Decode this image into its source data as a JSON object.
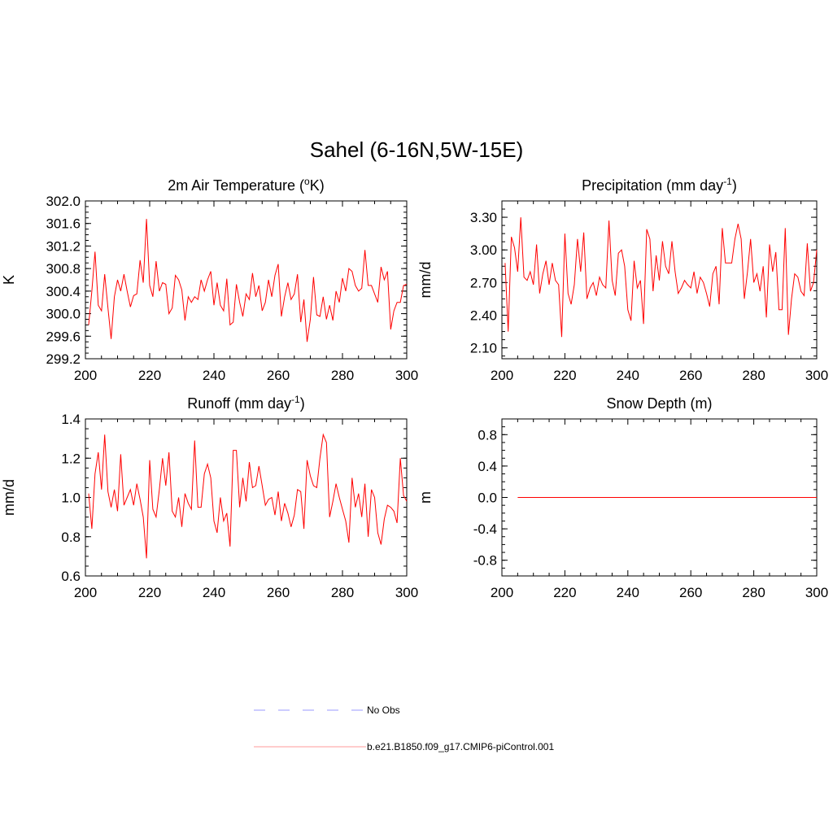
{
  "suptitle": "Sahel (6-16N,5W-15E)",
  "colors": {
    "model": "#ff0000",
    "obs": "#9999ff",
    "axis": "#000000"
  },
  "legend": {
    "obs_label": "No Obs",
    "model_label": "b.e21.B1850.f09_g17.CMIP6-piControl.001"
  },
  "chart_data": [
    {
      "type": "line",
      "title": "2m Air Temperature (",
      "title_parts": [
        "2m Air Temperature (",
        "o",
        "K)"
      ],
      "xlabel": "",
      "ylabel": "K",
      "xlim": [
        200,
        300
      ],
      "ylim": [
        299.2,
        302.0
      ],
      "xticks": [
        "200",
        "220",
        "240",
        "260",
        "280",
        "300"
      ],
      "yticks": [
        "299.2",
        "299.6",
        "300.0",
        "300.4",
        "300.8",
        "301.2",
        "301.6",
        "302.0"
      ],
      "x_start": 201,
      "series": [
        {
          "name": "b.e21.B1850.f09_g17.CMIP6-piControl.001",
          "values": [
            299.8,
            300.4,
            301.1,
            300.15,
            300.05,
            300.7,
            300.1,
            299.55,
            300.3,
            300.6,
            300.4,
            300.7,
            300.4,
            300.12,
            300.32,
            300.35,
            300.95,
            300.55,
            301.68,
            300.5,
            300.3,
            300.93,
            300.4,
            300.55,
            300.52,
            300.0,
            300.1,
            300.68,
            300.6,
            300.42,
            299.88,
            300.3,
            300.2,
            300.3,
            300.25,
            300.6,
            300.4,
            300.6,
            300.75,
            300.15,
            300.55,
            300.15,
            300.05,
            300.62,
            299.8,
            299.85,
            300.52,
            300.2,
            299.95,
            300.35,
            300.25,
            300.72,
            300.3,
            300.5,
            300.05,
            300.2,
            300.6,
            300.3,
            300.68,
            300.88,
            299.95,
            300.3,
            300.55,
            300.25,
            300.35,
            300.7,
            299.85,
            300.25,
            299.5,
            299.9,
            300.65,
            299.98,
            299.95,
            300.3,
            299.9,
            300.15,
            299.88,
            300.4,
            300.2,
            300.63,
            300.4,
            300.8,
            300.75,
            300.5,
            300.4,
            300.45,
            301.13,
            300.5,
            300.5,
            300.35,
            300.2,
            300.83,
            300.6,
            300.75,
            299.72,
            300.05,
            300.2,
            300.2,
            300.5,
            300.52
          ]
        }
      ]
    },
    {
      "type": "line",
      "title": "Precipitation (mm day",
      "title_parts": [
        "Precipitation (mm day",
        "-1",
        ")"
      ],
      "xlabel": "",
      "ylabel": "mm/d",
      "xlim": [
        200,
        300
      ],
      "ylim": [
        2.0,
        3.45
      ],
      "xticks": [
        "200",
        "220",
        "240",
        "260",
        "280",
        "300"
      ],
      "yticks": [
        "2.10",
        "2.40",
        "2.70",
        "3.00",
        "3.30"
      ],
      "x_start": 201,
      "series": [
        {
          "name": "b.e21.B1850.f09_g17.CMIP6-piControl.001",
          "values": [
            2.88,
            2.25,
            3.12,
            3.02,
            2.8,
            3.3,
            2.75,
            2.72,
            2.8,
            2.68,
            3.05,
            2.6,
            2.78,
            2.9,
            2.68,
            2.88,
            2.72,
            2.68,
            2.2,
            3.15,
            2.6,
            2.5,
            2.68,
            3.1,
            2.8,
            3.16,
            2.55,
            2.65,
            2.7,
            2.58,
            2.75,
            2.68,
            2.65,
            3.27,
            2.72,
            2.58,
            2.97,
            3.0,
            2.85,
            2.45,
            2.35,
            2.9,
            2.65,
            2.72,
            2.32,
            3.19,
            3.1,
            2.62,
            2.95,
            2.72,
            3.08,
            2.85,
            2.78,
            3.08,
            2.8,
            2.6,
            2.65,
            2.72,
            2.68,
            2.65,
            2.8,
            2.6,
            2.75,
            2.7,
            2.6,
            2.48,
            2.78,
            2.85,
            2.5,
            3.2,
            2.88,
            2.88,
            2.88,
            3.1,
            3.24,
            3.1,
            2.55,
            2.8,
            3.1,
            2.7,
            2.78,
            2.62,
            2.85,
            2.38,
            3.05,
            2.8,
            2.98,
            2.45,
            2.45,
            3.2,
            2.22,
            2.55,
            2.78,
            2.75,
            2.62,
            2.58,
            3.06,
            2.62,
            2.7,
            3.0
          ]
        }
      ]
    },
    {
      "type": "line",
      "title": "Runoff (mm day",
      "title_parts": [
        "Runoff (mm day",
        "-1",
        ")"
      ],
      "xlabel": "",
      "ylabel": "mm/d",
      "xlim": [
        200,
        300
      ],
      "ylim": [
        0.6,
        1.4
      ],
      "xticks": [
        "200",
        "220",
        "240",
        "260",
        "280",
        "300"
      ],
      "yticks": [
        "0.6",
        "0.8",
        "1.0",
        "1.2",
        "1.4"
      ],
      "x_start": 201,
      "series": [
        {
          "name": "b.e21.B1850.f09_g17.CMIP6-piControl.001",
          "values": [
            1.02,
            0.84,
            1.12,
            1.23,
            1.04,
            1.32,
            1.03,
            0.95,
            1.04,
            0.93,
            1.22,
            0.96,
            1.0,
            1.04,
            0.96,
            1.07,
            0.99,
            0.9,
            0.69,
            1.19,
            0.94,
            0.9,
            1.04,
            1.2,
            1.06,
            1.23,
            0.93,
            0.9,
            1.0,
            0.85,
            1.02,
            0.97,
            0.94,
            1.29,
            0.95,
            0.95,
            1.12,
            1.17,
            1.1,
            0.88,
            0.82,
            1.0,
            0.88,
            0.92,
            0.75,
            1.24,
            1.24,
            0.95,
            1.1,
            0.98,
            1.18,
            1.05,
            1.06,
            1.16,
            1.06,
            0.96,
            0.99,
            1.0,
            0.91,
            1.03,
            0.88,
            0.97,
            0.92,
            0.85,
            0.91,
            1.04,
            1.03,
            0.84,
            1.19,
            1.11,
            1.06,
            1.05,
            1.2,
            1.32,
            1.28,
            0.9,
            0.98,
            1.07,
            1.0,
            0.94,
            0.88,
            0.77,
            1.1,
            0.95,
            1.02,
            0.9,
            1.07,
            0.8,
            1.04,
            1.0,
            0.82,
            0.76,
            0.89,
            0.96,
            0.95,
            0.93,
            0.87,
            1.2,
            1.01,
            0.98
          ]
        }
      ]
    },
    {
      "type": "line",
      "title": "Snow Depth (m)",
      "title_parts": [
        "Snow Depth (m)",
        "",
        ""
      ],
      "xlabel": "",
      "ylabel": "m",
      "xlim": [
        200,
        300
      ],
      "ylim": [
        -1.0,
        1.0
      ],
      "xticks": [
        "200",
        "220",
        "240",
        "260",
        "280",
        "300"
      ],
      "yticks": [
        "-0.8",
        "-0.4",
        "0.0",
        "0.4",
        "0.8"
      ],
      "x_start": 205,
      "series": [
        {
          "name": "b.e21.B1850.f09_g17.CMIP6-piControl.001",
          "values": [
            0.0,
            0.0
          ],
          "x": [
            205,
            300
          ]
        }
      ]
    }
  ]
}
